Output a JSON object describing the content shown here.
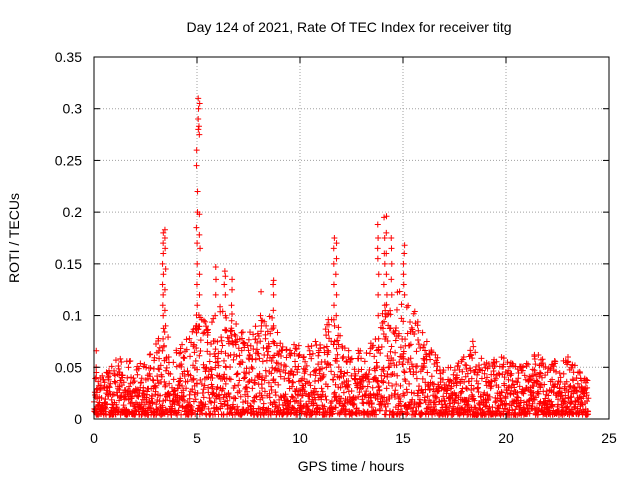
{
  "chart_data": {
    "type": "scatter",
    "title": "Day 124 of 2021, Rate Of TEC Index for receiver titg",
    "xlabel": "GPS time / hours",
    "ylabel": "ROTI / TECUs",
    "xlim": [
      0,
      25
    ],
    "ylim": [
      0,
      0.35
    ],
    "xticks": [
      0,
      5,
      10,
      15,
      20,
      25
    ],
    "xtick_labels": [
      "0",
      "5",
      "10",
      "15",
      "20",
      "25"
    ],
    "yticks": [
      0,
      0.05,
      0.1,
      0.15,
      0.2,
      0.25,
      0.3,
      0.35
    ],
    "ytick_labels": [
      "0",
      "0.05",
      "0.1",
      "0.15",
      "0.2",
      "0.25",
      "0.3",
      "0.35"
    ],
    "grid": true,
    "marker": "+",
    "series_color": "#ff0000",
    "series": [
      {
        "name": "ROTI",
        "envelope": {
          "x": [
            0,
            0.2,
            0.5,
            1.0,
            1.5,
            2.0,
            2.5,
            3.0,
            3.3,
            3.5,
            3.8,
            4.2,
            4.6,
            4.9,
            5.1,
            5.4,
            5.8,
            6.2,
            6.6,
            7.0,
            7.5,
            8.0,
            8.5,
            9.0,
            9.5,
            10.0,
            10.5,
            11.0,
            11.5,
            11.8,
            12.2,
            12.7,
            13.2,
            13.6,
            14.0,
            14.3,
            14.7,
            15.0,
            15.3,
            15.7,
            16.0,
            16.5,
            17.0,
            17.5,
            18.0,
            18.5,
            19.0,
            19.5,
            20.0,
            20.5,
            21.0,
            21.5,
            22.0,
            22.5,
            23.0,
            23.5,
            24.0
          ],
          "y": [
            0.04,
            0.045,
            0.04,
            0.055,
            0.055,
            0.05,
            0.05,
            0.07,
            0.08,
            0.09,
            0.06,
            0.07,
            0.075,
            0.1,
            0.11,
            0.09,
            0.1,
            0.11,
            0.1,
            0.09,
            0.08,
            0.09,
            0.1,
            0.08,
            0.07,
            0.07,
            0.07,
            0.08,
            0.1,
            0.11,
            0.07,
            0.06,
            0.07,
            0.08,
            0.1,
            0.11,
            0.12,
            0.13,
            0.11,
            0.1,
            0.08,
            0.06,
            0.05,
            0.045,
            0.06,
            0.065,
            0.05,
            0.06,
            0.055,
            0.05,
            0.05,
            0.06,
            0.05,
            0.055,
            0.055,
            0.045,
            0.04
          ]
        },
        "spikes": [
          {
            "x": 0.1,
            "values": [
              0.066,
              0.05,
              0.045,
              0.04
            ]
          },
          {
            "x": 3.35,
            "values": [
              0.1,
              0.11,
              0.12,
              0.13,
              0.14,
              0.15,
              0.16,
              0.17,
              0.18
            ]
          },
          {
            "x": 3.45,
            "values": [
              0.09,
              0.105,
              0.125,
              0.145,
              0.165,
              0.175,
              0.183
            ]
          },
          {
            "x": 5.0,
            "values": [
              0.09,
              0.11,
              0.13,
              0.15,
              0.17,
              0.185,
              0.2,
              0.22,
              0.245,
              0.26
            ]
          },
          {
            "x": 5.05,
            "values": [
              0.28,
              0.29,
              0.3,
              0.31
            ]
          },
          {
            "x": 5.12,
            "values": [
              0.12,
              0.14,
              0.165,
              0.178,
              0.198,
              0.275,
              0.283,
              0.305
            ]
          },
          {
            "x": 5.9,
            "values": [
              0.1,
              0.12,
              0.135,
              0.147
            ]
          },
          {
            "x": 6.35,
            "values": [
              0.1,
              0.12,
              0.13,
              0.143,
              0.138
            ]
          },
          {
            "x": 6.7,
            "values": [
              0.095,
              0.11,
              0.125,
              0.135
            ]
          },
          {
            "x": 8.7,
            "values": [
              0.09,
              0.105,
              0.12,
              0.134,
              0.13
            ]
          },
          {
            "x": 8.1,
            "values": [
              0.09,
              0.1,
              0.123
            ]
          },
          {
            "x": 11.65,
            "values": [
              0.09,
              0.11,
              0.13,
              0.15,
              0.165,
              0.175
            ]
          },
          {
            "x": 11.75,
            "values": [
              0.1,
              0.12,
              0.14,
              0.155,
              0.17
            ]
          },
          {
            "x": 13.8,
            "values": [
              0.1,
              0.12,
              0.14,
              0.155,
              0.165,
              0.175,
              0.188
            ]
          },
          {
            "x": 14.1,
            "values": [
              0.11,
              0.13,
              0.15,
              0.16,
              0.175,
              0.195
            ]
          },
          {
            "x": 14.2,
            "values": [
              0.12,
              0.14,
              0.16,
              0.18,
              0.196
            ]
          },
          {
            "x": 14.45,
            "values": [
              0.12,
              0.135,
              0.15,
              0.165,
              0.175
            ]
          },
          {
            "x": 15.05,
            "values": [
              0.12,
              0.13,
              0.14,
              0.15,
              0.16,
              0.168
            ]
          },
          {
            "x": 18.4,
            "values": [
              0.07,
              0.075
            ]
          },
          {
            "x": 21.4,
            "values": [
              0.058,
              0.062
            ]
          },
          {
            "x": 23.0,
            "values": [
              0.055,
              0.06
            ]
          }
        ]
      }
    ]
  }
}
